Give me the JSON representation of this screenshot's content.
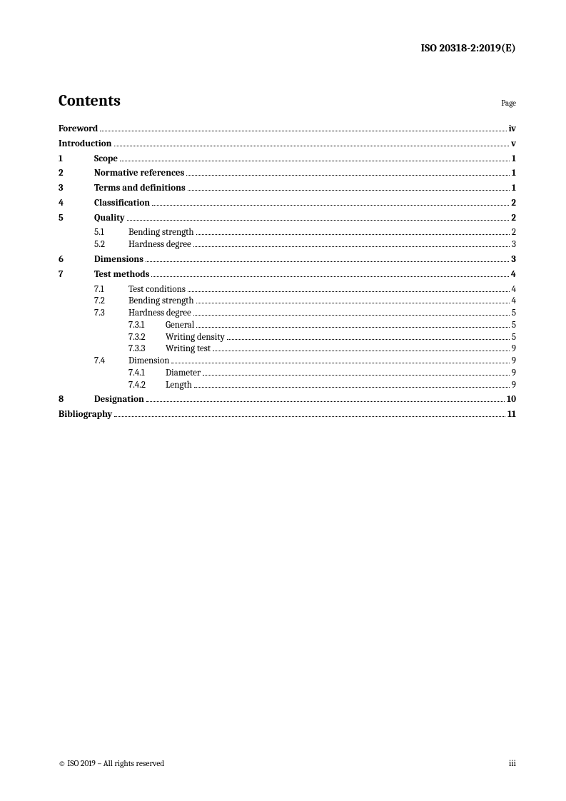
{
  "header": {
    "doc_id": "ISO 20318-2:2019(E)"
  },
  "contents": {
    "title": "Contents",
    "page_label": "Page"
  },
  "toc": [
    {
      "level": 0,
      "num": "",
      "title": "Foreword",
      "page": "iv",
      "bold": true
    },
    {
      "level": 0,
      "num": "",
      "title": "Introduction",
      "page": "v",
      "bold": true
    },
    {
      "level": 1,
      "num": "1",
      "title": "Scope",
      "page": "1",
      "bold": true
    },
    {
      "level": 1,
      "num": "2",
      "title": "Normative references",
      "page": "1",
      "bold": true
    },
    {
      "level": 1,
      "num": "3",
      "title": "Terms and definitions",
      "page": "1",
      "bold": true
    },
    {
      "level": 1,
      "num": "4",
      "title": "Classification",
      "page": "2",
      "bold": true
    },
    {
      "level": 1,
      "num": "5",
      "title": "Quality",
      "page": "2",
      "bold": true,
      "group_start": true
    },
    {
      "level": 2,
      "num": "5.1",
      "title": "Bending strength",
      "page": "2",
      "bold": false
    },
    {
      "level": 2,
      "num": "5.2",
      "title": "Hardness degree",
      "page": "3",
      "bold": false,
      "group_end": true
    },
    {
      "level": 1,
      "num": "6",
      "title": "Dimensions",
      "page": "3",
      "bold": true
    },
    {
      "level": 1,
      "num": "7",
      "title": "Test methods",
      "page": "4",
      "bold": true,
      "group_start": true
    },
    {
      "level": 2,
      "num": "7.1",
      "title": "Test conditions",
      "page": "4",
      "bold": false
    },
    {
      "level": 2,
      "num": "7.2",
      "title": "Bending strength",
      "page": "4",
      "bold": false
    },
    {
      "level": 2,
      "num": "7.3",
      "title": "Hardness degree",
      "page": "5",
      "bold": false
    },
    {
      "level": 3,
      "num": "7.3.1",
      "title": "General",
      "page": "5",
      "bold": false
    },
    {
      "level": 3,
      "num": "7.3.2",
      "title": "Writing density",
      "page": "5",
      "bold": false
    },
    {
      "level": 3,
      "num": "7.3.3",
      "title": "Writing test",
      "page": "9",
      "bold": false
    },
    {
      "level": 2,
      "num": "7.4",
      "title": "Dimension",
      "page": "9",
      "bold": false
    },
    {
      "level": 3,
      "num": "7.4.1",
      "title": "Diameter",
      "page": "9",
      "bold": false
    },
    {
      "level": 3,
      "num": "7.4.2",
      "title": "Length",
      "page": "9",
      "bold": false,
      "group_end": true
    },
    {
      "level": 1,
      "num": "8",
      "title": "Designation",
      "page": "10",
      "bold": true
    },
    {
      "level": 0,
      "num": "",
      "title": "Bibliography",
      "page": "11",
      "bold": true
    }
  ],
  "footer": {
    "copyright": "© ISO 2019 – All rights reserved",
    "page_number": "iii"
  }
}
